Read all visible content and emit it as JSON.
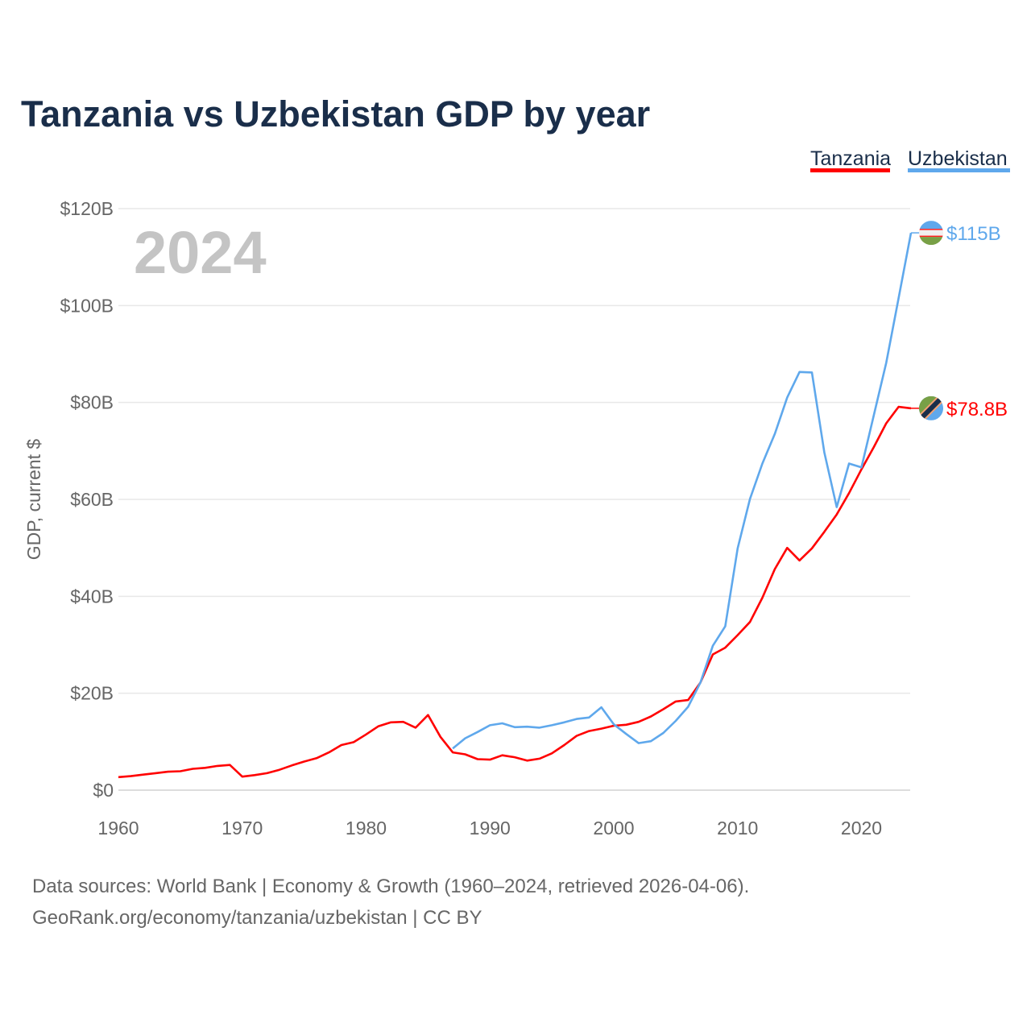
{
  "chart_data": {
    "type": "line",
    "title": "Tanzania vs Uzbekistan GDP by year",
    "ylabel": "GDP, current $",
    "xlabel": "",
    "year_label": "2024",
    "xlim": [
      1960,
      2024
    ],
    "ylim": [
      0,
      120
    ],
    "x_ticks": [
      1960,
      1970,
      1980,
      1990,
      2000,
      2010,
      2020
    ],
    "x_tick_labels": [
      "1960",
      "1970",
      "1980",
      "1990",
      "2000",
      "2010",
      "2020"
    ],
    "y_ticks": [
      0,
      20,
      40,
      60,
      80,
      100,
      120
    ],
    "y_tick_labels": [
      "$0",
      "$20B",
      "$40B",
      "$60B",
      "$80B",
      "$100B",
      "$120B"
    ],
    "grid": true,
    "legend_placement": "top-right",
    "series": [
      {
        "name": "Tanzania",
        "color": "#ff0000",
        "end_label": "$78.8B",
        "flag": "tanzania-flag",
        "start_year": 1960,
        "values": [
          2.7,
          2.9,
          3.2,
          3.5,
          3.8,
          3.9,
          4.4,
          4.6,
          5.0,
          5.2,
          2.8,
          3.1,
          3.5,
          4.2,
          5.1,
          5.9,
          6.6,
          7.8,
          9.3,
          9.9,
          11.5,
          13.2,
          14.0,
          14.1,
          12.9,
          15.5,
          11.0,
          7.8,
          7.4,
          6.4,
          6.3,
          7.2,
          6.8,
          6.1,
          6.5,
          7.6,
          9.3,
          11.2,
          12.2,
          12.7,
          13.3,
          13.5,
          14.1,
          15.2,
          16.7,
          18.3,
          18.6,
          22.2,
          28.0,
          29.4,
          32.0,
          34.7,
          39.7,
          45.6,
          50.0,
          47.4,
          49.9,
          53.3,
          56.9,
          61.3,
          66.2,
          70.8,
          75.7,
          79.1,
          78.8
        ]
      },
      {
        "name": "Uzbekistan",
        "color": "#5fa8ec",
        "end_label": "$115B",
        "flag": "uzbekistan-flag",
        "start_year": 1987,
        "values": [
          8.6,
          10.7,
          12.0,
          13.4,
          13.8,
          13.0,
          13.1,
          12.9,
          13.4,
          14.0,
          14.7,
          15.0,
          17.1,
          13.6,
          11.6,
          9.7,
          10.1,
          11.8,
          14.3,
          17.2,
          22.2,
          29.8,
          33.8,
          49.9,
          60.1,
          67.4,
          73.5,
          81.0,
          86.3,
          86.2,
          69.7,
          58.4,
          67.4,
          66.6,
          77.4,
          88.2,
          101.5,
          115.0
        ]
      }
    ]
  },
  "footer": {
    "line1": "Data sources: World Bank | Economy & Growth (1960–2024, retrieved 2026-04-06).",
    "line2": "GeoRank.org/economy/tanzania/uzbekistan | CC BY"
  }
}
